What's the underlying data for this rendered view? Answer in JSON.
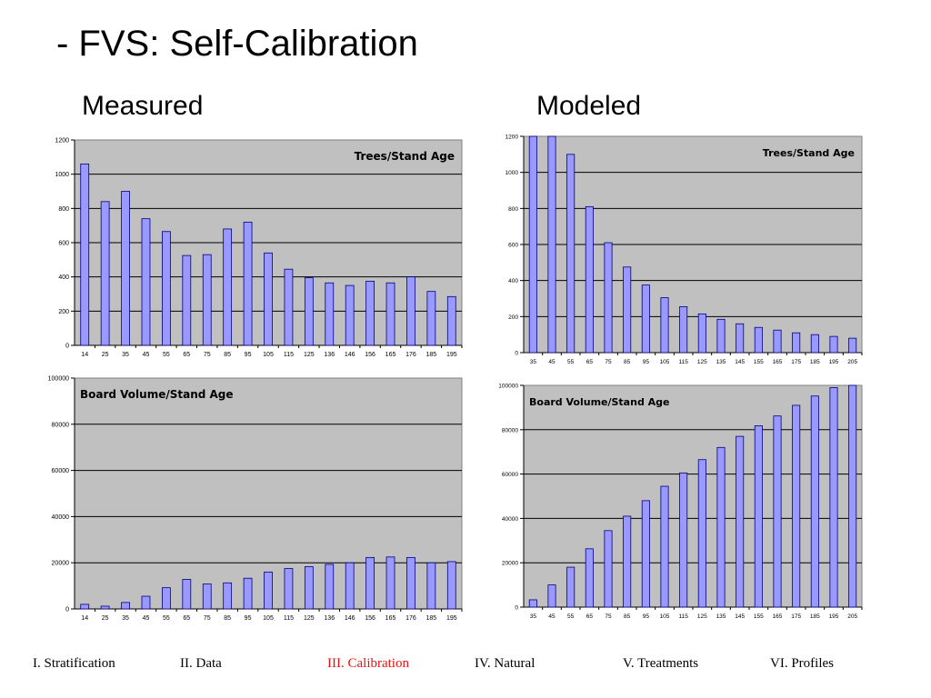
{
  "title": "- FVS: Self-Calibration",
  "headers": {
    "measured": "Measured",
    "modeled": "Modeled"
  },
  "colors": {
    "plot_bg": "#c0c0c0",
    "bar_fill": "#9999ff",
    "bar_stroke": "#000080",
    "nav_active": "#e81010"
  },
  "nav": [
    {
      "label": "I. Stratification",
      "active": false
    },
    {
      "label": "II. Data",
      "active": false
    },
    {
      "label": "III. Calibration",
      "active": true
    },
    {
      "label": "IV. Natural",
      "active": false
    },
    {
      "label": "V. Treatments",
      "active": false
    },
    {
      "label": "VI. Profiles",
      "active": false
    }
  ],
  "chart_data": [
    {
      "type": "bar",
      "annotation": "Trees/Stand Age",
      "categories": [
        "14",
        "25",
        "35",
        "45",
        "55",
        "65",
        "75",
        "85",
        "95",
        "105",
        "115",
        "125",
        "136",
        "146",
        "156",
        "165",
        "176",
        "185",
        "195"
      ],
      "values": [
        1060,
        840,
        900,
        740,
        665,
        525,
        530,
        680,
        720,
        540,
        445,
        395,
        365,
        350,
        375,
        365,
        400,
        315,
        285
      ],
      "ylim": [
        0,
        1200
      ],
      "yticks": [
        "0",
        "200",
        "400",
        "600",
        "800",
        "1000",
        "1200"
      ],
      "grid": true,
      "annotation_placement": "top-right"
    },
    {
      "type": "bar",
      "annotation": "Trees/Stand Age",
      "categories": [
        "35",
        "45",
        "55",
        "65",
        "75",
        "85",
        "95",
        "105",
        "115",
        "125",
        "135",
        "145",
        "155",
        "165",
        "175",
        "185",
        "195",
        "205"
      ],
      "values": [
        1200,
        1200,
        1100,
        810,
        610,
        475,
        375,
        305,
        255,
        215,
        185,
        160,
        140,
        125,
        110,
        100,
        90,
        80
      ],
      "ylim": [
        0,
        1200
      ],
      "yticks": [
        "0",
        "200",
        "400",
        "600",
        "800",
        "1000",
        "1200"
      ],
      "grid": true,
      "annotation_placement": "top-right"
    },
    {
      "type": "bar",
      "annotation": "Board Volume/Stand Age",
      "categories": [
        "14",
        "25",
        "35",
        "45",
        "55",
        "65",
        "75",
        "85",
        "95",
        "105",
        "115",
        "125",
        "136",
        "146",
        "156",
        "165",
        "176",
        "185",
        "195"
      ],
      "values": [
        2000,
        1200,
        2800,
        5500,
        9200,
        12800,
        10800,
        11300,
        13300,
        16000,
        17500,
        18300,
        19300,
        20000,
        22300,
        22500,
        22300,
        20000,
        20500
      ],
      "ylim": [
        0,
        100000
      ],
      "yticks": [
        "0",
        "20000",
        "40000",
        "60000",
        "80000",
        "100000"
      ],
      "grid": true,
      "annotation_placement": "top-left"
    },
    {
      "type": "bar",
      "annotation": "Board Volume/Stand Age",
      "categories": [
        "35",
        "45",
        "55",
        "65",
        "75",
        "85",
        "95",
        "105",
        "115",
        "125",
        "135",
        "145",
        "155",
        "165",
        "175",
        "185",
        "195",
        "205"
      ],
      "values": [
        3300,
        10000,
        18000,
        26300,
        34500,
        41000,
        48000,
        54500,
        60500,
        66500,
        72000,
        77000,
        81800,
        86200,
        91000,
        95200,
        99000,
        100000
      ],
      "ylim": [
        0,
        100000
      ],
      "yticks": [
        "0",
        "20000",
        "40000",
        "60000",
        "80000",
        "100000"
      ],
      "grid": true,
      "annotation_placement": "top-left"
    }
  ]
}
